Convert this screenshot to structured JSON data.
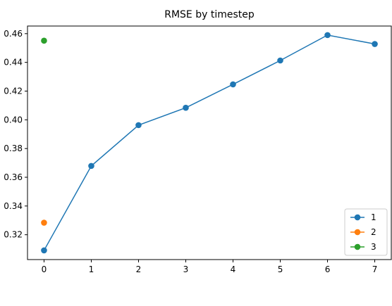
{
  "chart_data": {
    "type": "line",
    "title": "RMSE by timestep",
    "xlabel": "",
    "ylabel": "",
    "xlim": [
      -0.35,
      7.35
    ],
    "ylim": [
      0.3027,
      0.4653
    ],
    "xticks": [
      0,
      1,
      2,
      3,
      4,
      5,
      6,
      7
    ],
    "xtick_labels": [
      "0",
      "1",
      "2",
      "3",
      "4",
      "5",
      "6",
      "7"
    ],
    "yticks": [
      0.32,
      0.34,
      0.36,
      0.38,
      0.4,
      0.42,
      0.44,
      0.46
    ],
    "ytick_labels": [
      "0.32",
      "0.34",
      "0.36",
      "0.38",
      "0.40",
      "0.42",
      "0.44",
      "0.46"
    ],
    "grid": false,
    "legend_position": "bottom-right",
    "series": [
      {
        "name": "1",
        "color": "#1f77b4",
        "x": [
          0,
          1,
          2,
          3,
          4,
          5,
          6,
          7
        ],
        "y": [
          0.3091,
          0.3679,
          0.3963,
          0.4084,
          0.4247,
          0.4413,
          0.459,
          0.4528
        ]
      },
      {
        "name": "2",
        "color": "#ff7f0e",
        "x": [
          0
        ],
        "y": [
          0.3284
        ]
      },
      {
        "name": "3",
        "color": "#2ca02c",
        "x": [
          0
        ],
        "y": [
          0.4551
        ]
      }
    ]
  }
}
